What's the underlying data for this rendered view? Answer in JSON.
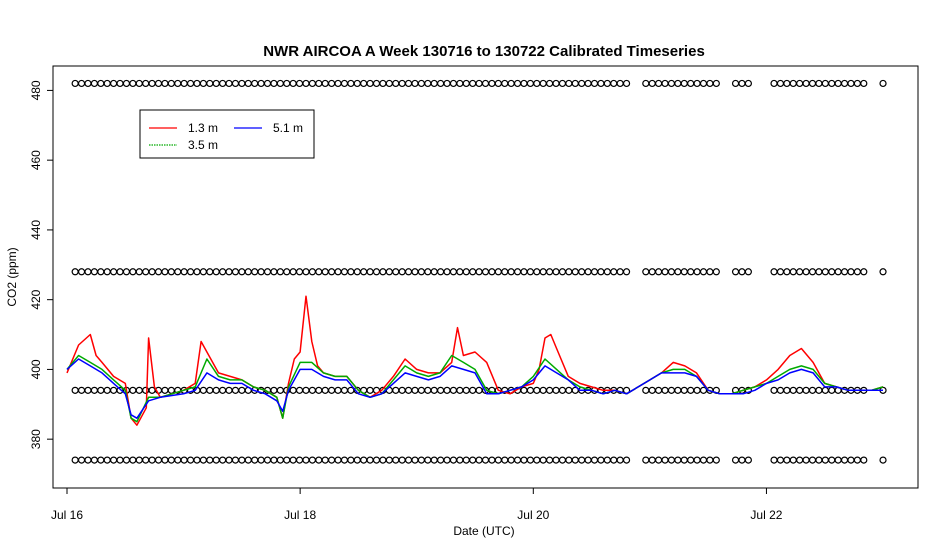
{
  "chart_data": {
    "type": "line",
    "title": "NWR AIRCOA A  Week 130716 to 130722  Calibrated Timeseries",
    "xlabel": "Date (UTC)",
    "ylabel": "CO2 (ppm)",
    "xlim": [
      -0.12,
      7.3
    ],
    "ylim": [
      366,
      487
    ],
    "x_ticks": [
      {
        "value": 0,
        "label": "Jul 16"
      },
      {
        "value": 2,
        "label": "Jul 18"
      },
      {
        "value": 4,
        "label": "Jul 20"
      },
      {
        "value": 6,
        "label": "Jul 22"
      }
    ],
    "y_ticks": [
      {
        "value": 380,
        "label": "380"
      },
      {
        "value": 400,
        "label": "400"
      },
      {
        "value": 420,
        "label": "420"
      },
      {
        "value": 440,
        "label": "440"
      },
      {
        "value": 460,
        "label": "460"
      },
      {
        "value": 480,
        "label": "480"
      }
    ],
    "legend": {
      "position": "top-left",
      "entries": [
        {
          "label": "1.3 m",
          "color": "#ff0000"
        },
        {
          "label": "5.1 m",
          "color": "#0000ff"
        },
        {
          "label": "3.5 m",
          "color": "#00aa00"
        }
      ]
    },
    "series": [
      {
        "name": "1.3 m",
        "color": "#ff0000",
        "x": [
          0.0,
          0.1,
          0.2,
          0.25,
          0.3,
          0.4,
          0.5,
          0.55,
          0.6,
          0.68,
          0.7,
          0.75,
          0.8,
          1.0,
          1.1,
          1.15,
          1.2,
          1.3,
          1.4,
          1.5,
          1.6,
          1.7,
          1.8,
          1.85,
          1.9,
          1.95,
          2.0,
          2.05,
          2.1,
          2.15,
          2.2,
          2.3,
          2.4,
          2.5,
          2.6,
          2.7,
          2.8,
          2.9,
          3.0,
          3.1,
          3.2,
          3.3,
          3.35,
          3.4,
          3.5,
          3.6,
          3.7,
          3.8,
          3.9,
          4.0,
          4.05,
          4.1,
          4.15,
          4.2,
          4.3,
          4.4,
          4.5,
          4.6,
          4.7,
          4.8,
          4.9,
          5.0,
          5.1,
          5.2,
          5.3,
          5.4,
          5.5,
          5.6,
          5.7,
          5.8,
          5.9,
          6.0,
          6.1,
          6.2,
          6.3,
          6.4,
          6.5,
          6.6,
          6.7,
          6.8,
          6.9,
          7.0
        ],
        "y": [
          399,
          407,
          410,
          404,
          402,
          398,
          396,
          386,
          384,
          389,
          409,
          395,
          392,
          394,
          396,
          408,
          405,
          399,
          398,
          397,
          395,
          394,
          392,
          386,
          396,
          403,
          405,
          421,
          408,
          401,
          399,
          398,
          398,
          394,
          392,
          394,
          398,
          403,
          400,
          399,
          399,
          402,
          412,
          404,
          405,
          402,
          394,
          393,
          395,
          396,
          400,
          409,
          410,
          406,
          398,
          396,
          395,
          394,
          394,
          393,
          395,
          397,
          399,
          402,
          401,
          399,
          394,
          393,
          393,
          394,
          395,
          397,
          400,
          404,
          406,
          402,
          396,
          395,
          394,
          394,
          394,
          395
        ]
      },
      {
        "name": "3.5 m",
        "color": "#00aa00",
        "x": [
          0.0,
          0.1,
          0.2,
          0.3,
          0.4,
          0.5,
          0.55,
          0.6,
          0.7,
          0.8,
          1.0,
          1.1,
          1.2,
          1.3,
          1.4,
          1.5,
          1.6,
          1.7,
          1.8,
          1.85,
          1.9,
          2.0,
          2.1,
          2.2,
          2.3,
          2.4,
          2.5,
          2.6,
          2.7,
          2.8,
          2.9,
          3.0,
          3.1,
          3.2,
          3.3,
          3.4,
          3.5,
          3.6,
          3.7,
          3.8,
          3.9,
          4.0,
          4.1,
          4.2,
          4.3,
          4.4,
          4.5,
          4.6,
          4.7,
          4.8,
          4.9,
          5.0,
          5.1,
          5.2,
          5.3,
          5.4,
          5.5,
          5.6,
          5.7,
          5.8,
          5.9,
          6.0,
          6.1,
          6.2,
          6.3,
          6.4,
          6.5,
          6.6,
          6.7,
          6.8,
          6.9,
          7.0
        ],
        "y": [
          400,
          404,
          402,
          400,
          397,
          394,
          386,
          385,
          392,
          392,
          394,
          395,
          403,
          398,
          397,
          397,
          395,
          394,
          392,
          386,
          395,
          402,
          402,
          399,
          398,
          398,
          394,
          392,
          393,
          397,
          401,
          399,
          398,
          399,
          404,
          402,
          400,
          394,
          393,
          394,
          395,
          398,
          403,
          400,
          397,
          395,
          394,
          393,
          394,
          393,
          395,
          397,
          399,
          400,
          400,
          398,
          394,
          393,
          393,
          394,
          395,
          396,
          398,
          400,
          401,
          400,
          396,
          395,
          394,
          394,
          394,
          395
        ]
      },
      {
        "name": "5.1 m",
        "color": "#0000ff",
        "x": [
          0.0,
          0.1,
          0.2,
          0.3,
          0.4,
          0.5,
          0.55,
          0.6,
          0.7,
          0.8,
          1.0,
          1.1,
          1.2,
          1.3,
          1.4,
          1.5,
          1.6,
          1.7,
          1.8,
          1.85,
          1.9,
          2.0,
          2.1,
          2.2,
          2.3,
          2.4,
          2.5,
          2.6,
          2.7,
          2.8,
          2.9,
          3.0,
          3.1,
          3.2,
          3.3,
          3.4,
          3.5,
          3.6,
          3.7,
          3.8,
          3.9,
          4.0,
          4.1,
          4.2,
          4.3,
          4.4,
          4.5,
          4.6,
          4.7,
          4.8,
          4.9,
          5.0,
          5.1,
          5.2,
          5.3,
          5.4,
          5.5,
          5.6,
          5.7,
          5.8,
          5.9,
          6.0,
          6.1,
          6.2,
          6.3,
          6.4,
          6.5,
          6.6,
          6.7,
          6.8,
          6.9,
          7.0
        ],
        "y": [
          400,
          403,
          401,
          399,
          396,
          393,
          387,
          386,
          391,
          392,
          393,
          394,
          399,
          397,
          396,
          396,
          394,
          393,
          391,
          388,
          394,
          400,
          400,
          398,
          397,
          397,
          393,
          392,
          393,
          396,
          399,
          398,
          397,
          398,
          401,
          400,
          399,
          393,
          393,
          394,
          395,
          397,
          401,
          399,
          397,
          394,
          394,
          393,
          394,
          393,
          395,
          397,
          399,
          399,
          399,
          398,
          394,
          393,
          393,
          393,
          394,
          396,
          397,
          399,
          400,
          399,
          395,
          395,
          394,
          394,
          394,
          394
        ]
      }
    ],
    "markers": {
      "symbol": "open-circle",
      "color": "#000000",
      "levels": [
        482,
        428,
        394,
        374
      ],
      "x_start": 0.07,
      "x_end": 7.0,
      "spacing": 0.055,
      "gaps": [
        [
          4.82,
          4.95
        ],
        [
          5.6,
          5.7
        ],
        [
          5.88,
          6.02
        ],
        [
          6.85,
          6.98
        ]
      ]
    }
  }
}
